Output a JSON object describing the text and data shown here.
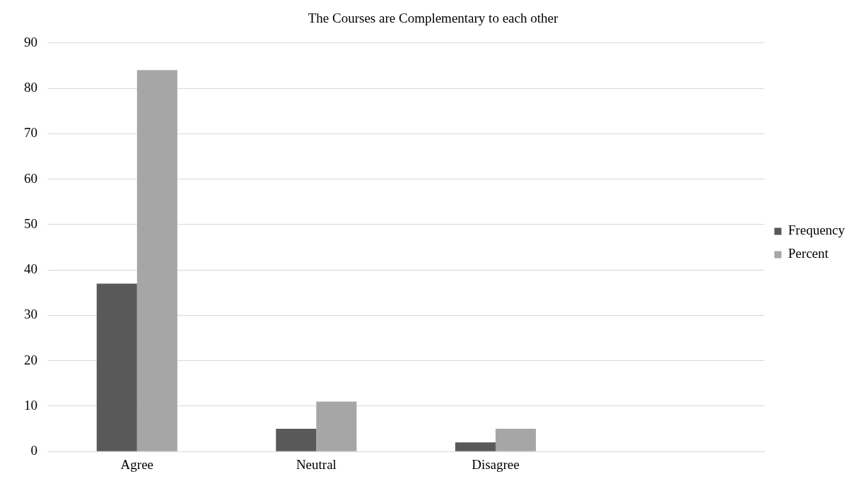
{
  "chart_data": {
    "type": "bar",
    "title": "The Courses are Complementary to each other",
    "categories": [
      "Agree",
      "Neutral",
      "Disagree",
      null
    ],
    "series": [
      {
        "name": "Frequency",
        "color": "#595959",
        "values": [
          37,
          5,
          2,
          null
        ]
      },
      {
        "name": "Percent",
        "color": "#a6a6a6",
        "values": [
          84,
          11,
          5,
          null
        ]
      }
    ],
    "ylim": [
      0,
      90
    ],
    "yticks": [
      0,
      10,
      20,
      30,
      40,
      50,
      60,
      70,
      80,
      90
    ],
    "grid": "y",
    "legend": "right"
  }
}
